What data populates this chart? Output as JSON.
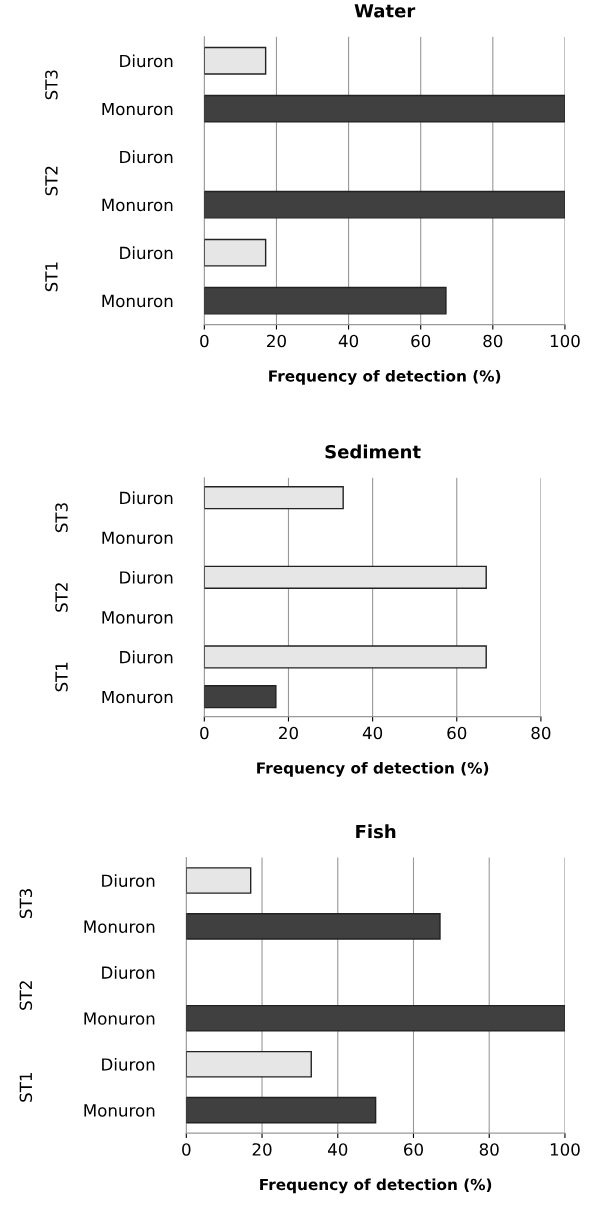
{
  "chart_data": [
    {
      "type": "bar",
      "orientation": "horizontal",
      "title": "Water",
      "xlabel": "Frequency of detection (%)",
      "categories": [
        "Diuron",
        "Monuron",
        "Diuron",
        "Monuron",
        "Diuron",
        "Monuron"
      ],
      "values": [
        17,
        100,
        0,
        100,
        17,
        67
      ],
      "colors": [
        "#e6e6e6",
        "#404040",
        "#e6e6e6",
        "#404040",
        "#e6e6e6",
        "#404040"
      ],
      "xlim": [
        0,
        100
      ],
      "xticks": [
        0,
        20,
        40,
        60,
        80,
        100
      ],
      "grid": "x",
      "annotations": [
        "ST3",
        "ST2",
        "ST1"
      ]
    },
    {
      "type": "bar",
      "orientation": "horizontal",
      "title": "Sediment",
      "xlabel": "Frequency of detection (%)",
      "categories": [
        "Diuron",
        "Monuron",
        "Diuron",
        "Monuron",
        "Diuron",
        "Monuron"
      ],
      "values": [
        33,
        0,
        67,
        0,
        67,
        17
      ],
      "colors": [
        "#e6e6e6",
        "#404040",
        "#e6e6e6",
        "#404040",
        "#e6e6e6",
        "#404040"
      ],
      "xlim": [
        0,
        80
      ],
      "xticks": [
        0,
        20,
        40,
        60,
        80
      ],
      "grid": "x",
      "annotations": [
        "ST3",
        "ST2",
        "ST1"
      ]
    },
    {
      "type": "bar",
      "orientation": "horizontal",
      "title": "Fish",
      "xlabel": "Frequency of detection (%)",
      "categories": [
        "Diuron",
        "Monuron",
        "Diuron",
        "Monuron",
        "Diuron",
        "Monuron"
      ],
      "values": [
        17,
        67,
        0,
        100,
        33,
        50
      ],
      "colors": [
        "#e6e6e6",
        "#404040",
        "#e6e6e6",
        "#404040",
        "#e6e6e6",
        "#404040"
      ],
      "xlim": [
        0,
        100
      ],
      "xticks": [
        0,
        20,
        40,
        60,
        80,
        100
      ],
      "grid": "x",
      "annotations": [
        "ST3",
        "ST2",
        "ST1"
      ]
    }
  ]
}
